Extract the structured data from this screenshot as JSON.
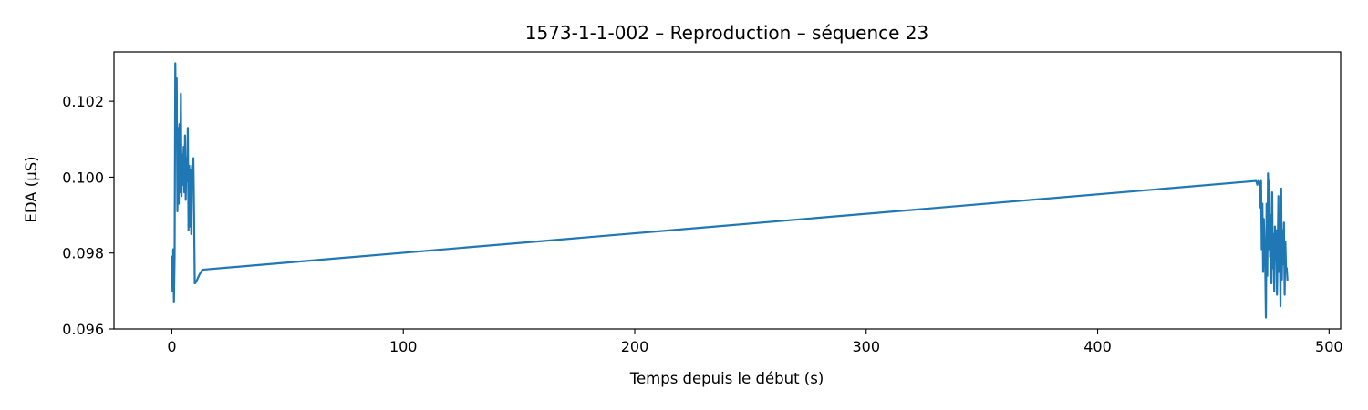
{
  "chart_data": {
    "type": "line",
    "title": "1573-1-1-002 – Reproduction – séquence 23",
    "xlabel": "Temps depuis le début (s)",
    "ylabel": "EDA (µS)",
    "xlim": [
      -25,
      505
    ],
    "ylim": [
      0.096,
      0.1033
    ],
    "xticks": [
      0,
      100,
      200,
      300,
      400,
      500
    ],
    "xtick_labels": [
      "0",
      "100",
      "200",
      "300",
      "400",
      "500"
    ],
    "yticks": [
      0.096,
      0.098,
      0.1,
      0.102
    ],
    "ytick_labels": [
      "0.096",
      "0.098",
      "0.100",
      "0.102"
    ],
    "grid": false,
    "legend": "none",
    "series": [
      {
        "color": "#1f77b4",
        "x": [
          0.0,
          0.3,
          0.6,
          0.9,
          1.2,
          1.5,
          1.8,
          2.1,
          2.4,
          2.7,
          3.0,
          3.3,
          3.6,
          3.9,
          4.2,
          4.5,
          4.8,
          5.1,
          5.4,
          5.7,
          6.0,
          6.3,
          6.6,
          6.9,
          7.2,
          7.5,
          7.8,
          8.1,
          8.4,
          8.7,
          9.0,
          9.3,
          9.6,
          9.9,
          10.2,
          10.5,
          10.8,
          11.1,
          11.4,
          11.7,
          12.0,
          12.3,
          12.6,
          12.9,
          13.2,
          468.5,
          469.0,
          469.5,
          470.0,
          470.3,
          470.6,
          470.9,
          471.2,
          471.5,
          471.8,
          472.1,
          472.4,
          472.7,
          473.0,
          473.3,
          473.6,
          473.9,
          474.2,
          474.5,
          474.8,
          475.1,
          475.4,
          475.7,
          476.0,
          476.3,
          476.6,
          476.9,
          477.2,
          477.5,
          477.8,
          478.1,
          478.4,
          478.7,
          479.0,
          479.3,
          479.6,
          479.9,
          480.2,
          480.5,
          480.8,
          481.1,
          481.4,
          481.7,
          482.0
        ],
        "y": [
          0.0979,
          0.097,
          0.0981,
          0.0967,
          0.0979,
          0.103,
          0.1012,
          0.1026,
          0.0991,
          0.1013,
          0.0993,
          0.1014,
          0.0996,
          0.1022,
          0.0995,
          0.1006,
          0.0998,
          0.1008,
          0.0996,
          0.1011,
          0.0994,
          0.1005,
          0.0999,
          0.1013,
          0.0986,
          0.1003,
          0.0987,
          0.1002,
          0.0985,
          0.1003,
          0.0999,
          0.1005,
          0.099,
          0.0972,
          0.09721,
          0.09725,
          0.09728,
          0.09732,
          0.09736,
          0.0974,
          0.09744,
          0.09747,
          0.0975,
          0.09753,
          0.09756,
          0.0999,
          0.0998,
          0.0999,
          0.09985,
          0.0992,
          0.0999,
          0.0981,
          0.0993,
          0.0975,
          0.0989,
          0.0982,
          0.0977,
          0.0963,
          0.0993,
          0.0974,
          0.1001,
          0.0981,
          0.0999,
          0.0979,
          0.099,
          0.0972,
          0.0996,
          0.0976,
          0.0985,
          0.097,
          0.0987,
          0.0978,
          0.0986,
          0.0969,
          0.0981,
          0.0995,
          0.0975,
          0.0984,
          0.0966,
          0.0997,
          0.0973,
          0.0986,
          0.0977,
          0.0988,
          0.0969,
          0.0983,
          0.0976,
          0.0976,
          0.0973
        ]
      }
    ]
  }
}
